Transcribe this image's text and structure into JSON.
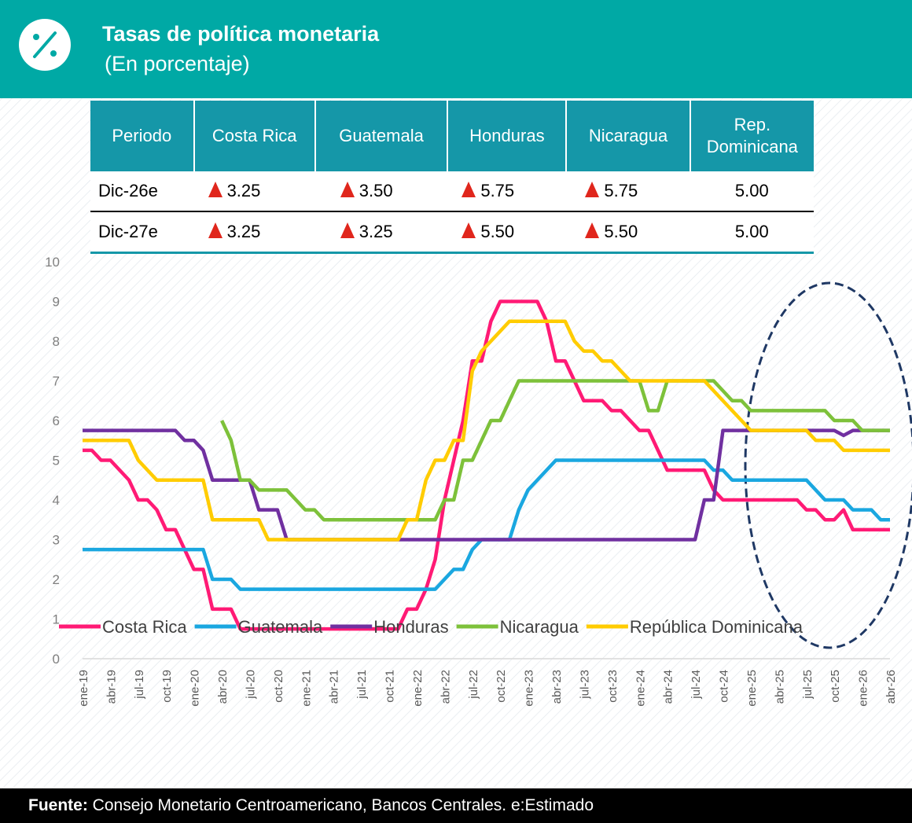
{
  "header": {
    "title": "Tasas de política monetaria",
    "subtitle": "(En porcentaje)"
  },
  "table": {
    "header": [
      "Periodo",
      "Costa Rica",
      "Guatemala",
      "Honduras",
      "Nicaragua",
      "Rep. Dominicana"
    ],
    "rows": [
      [
        "Dic-26e",
        "3.25",
        "3.50",
        "5.75",
        "5.75",
        "5.00"
      ],
      [
        "Dic-27e",
        "3.25",
        "3.25",
        "5.50",
        "5.50",
        "5.00"
      ]
    ]
  },
  "chart_data": {
    "type": "line",
    "categories": [
      "ene-19",
      null,
      null,
      "abr-19",
      null,
      null,
      "jul-19",
      null,
      null,
      "oct-19",
      null,
      null,
      "ene-20",
      null,
      null,
      "abr-20",
      null,
      null,
      "jul-20",
      null,
      null,
      "oct-20",
      null,
      null,
      "ene-21",
      null,
      null,
      "abr-21",
      null,
      null,
      "jul-21",
      null,
      null,
      "oct-21",
      null,
      null,
      "ene-22",
      null,
      null,
      "abr-22",
      null,
      null,
      "jul-22",
      null,
      null,
      "oct-22",
      null,
      null,
      "ene-23",
      null,
      null,
      "abr-23",
      null,
      null,
      "jul-23",
      null,
      null,
      "oct-23",
      null,
      null,
      "ene-24",
      null,
      null,
      "abr-24",
      null,
      null,
      "jul-24",
      null,
      null,
      "oct-24",
      null,
      null,
      "ene-25",
      null,
      null,
      "abr-25",
      null,
      null,
      "jul-25",
      null,
      null,
      "oct-25",
      null,
      null,
      "ene-26",
      null,
      null,
      "abr-26"
    ],
    "ylim": [
      0,
      10
    ],
    "yticks": [
      0,
      1,
      2,
      3,
      4,
      5,
      6,
      7,
      8,
      9,
      10
    ],
    "grid": false,
    "legend": "bottom",
    "series": [
      {
        "name": "Costa Rica",
        "color": "#ff1a75",
        "values": [
          5.25,
          5.25,
          5.0,
          5.0,
          4.75,
          4.5,
          4.0,
          4.0,
          3.75,
          3.25,
          3.25,
          2.75,
          2.25,
          2.25,
          1.25,
          1.25,
          1.25,
          0.75,
          0.75,
          0.75,
          0.75,
          0.75,
          0.75,
          0.75,
          0.75,
          0.75,
          0.75,
          0.75,
          0.75,
          0.75,
          0.75,
          0.75,
          0.75,
          0.75,
          0.75,
          1.25,
          1.25,
          1.75,
          2.5,
          4.0,
          5.0,
          6.0,
          7.5,
          7.5,
          8.5,
          9.0,
          9.0,
          9.0,
          9.0,
          9.0,
          8.5,
          7.5,
          7.5,
          7.0,
          6.5,
          6.5,
          6.5,
          6.25,
          6.25,
          6.0,
          5.75,
          5.75,
          5.25,
          4.75,
          4.75,
          4.75,
          4.75,
          4.75,
          4.25,
          4.0,
          4.0,
          4.0,
          4.0,
          4.0,
          4.0,
          4.0,
          4.0,
          4.0,
          3.75,
          3.75,
          3.5,
          3.5,
          3.75,
          3.25,
          3.25,
          3.25,
          3.25,
          3.25
        ]
      },
      {
        "name": "Guatemala",
        "color": "#1aa7e0",
        "values": [
          2.75,
          2.75,
          2.75,
          2.75,
          2.75,
          2.75,
          2.75,
          2.75,
          2.75,
          2.75,
          2.75,
          2.75,
          2.75,
          2.75,
          2.0,
          2.0,
          2.0,
          1.75,
          1.75,
          1.75,
          1.75,
          1.75,
          1.75,
          1.75,
          1.75,
          1.75,
          1.75,
          1.75,
          1.75,
          1.75,
          1.75,
          1.75,
          1.75,
          1.75,
          1.75,
          1.75,
          1.75,
          1.75,
          1.75,
          2.0,
          2.25,
          2.25,
          2.75,
          3.0,
          3.0,
          3.0,
          3.0,
          3.75,
          4.25,
          4.5,
          4.75,
          5.0,
          5.0,
          5.0,
          5.0,
          5.0,
          5.0,
          5.0,
          5.0,
          5.0,
          5.0,
          5.0,
          5.0,
          5.0,
          5.0,
          5.0,
          5.0,
          5.0,
          4.75,
          4.75,
          4.5,
          4.5,
          4.5,
          4.5,
          4.5,
          4.5,
          4.5,
          4.5,
          4.5,
          4.25,
          4.0,
          4.0,
          4.0,
          3.75,
          3.75,
          3.75,
          3.5,
          3.5
        ]
      },
      {
        "name": "Honduras",
        "color": "#7030a0",
        "values": [
          5.75,
          5.75,
          5.75,
          5.75,
          5.75,
          5.75,
          5.75,
          5.75,
          5.75,
          5.75,
          5.75,
          5.5,
          5.5,
          5.25,
          4.5,
          4.5,
          4.5,
          4.5,
          4.5,
          3.75,
          3.75,
          3.75,
          3.0,
          3.0,
          3.0,
          3.0,
          3.0,
          3.0,
          3.0,
          3.0,
          3.0,
          3.0,
          3.0,
          3.0,
          3.0,
          3.0,
          3.0,
          3.0,
          3.0,
          3.0,
          3.0,
          3.0,
          3.0,
          3.0,
          3.0,
          3.0,
          3.0,
          3.0,
          3.0,
          3.0,
          3.0,
          3.0,
          3.0,
          3.0,
          3.0,
          3.0,
          3.0,
          3.0,
          3.0,
          3.0,
          3.0,
          3.0,
          3.0,
          3.0,
          3.0,
          3.0,
          3.0,
          4.0,
          4.0,
          5.75,
          5.75,
          5.75,
          5.75,
          5.75,
          5.75,
          5.75,
          5.75,
          5.75,
          5.75,
          5.75,
          5.75,
          5.75,
          5.625,
          5.75,
          5.75,
          5.75,
          5.75,
          5.75
        ]
      },
      {
        "name": "Nicaragua",
        "color": "#7dc13a",
        "values": [
          null,
          null,
          null,
          null,
          null,
          null,
          null,
          null,
          null,
          null,
          null,
          null,
          null,
          null,
          null,
          6.0,
          5.5,
          4.5,
          4.5,
          4.25,
          4.25,
          4.25,
          4.25,
          4.0,
          3.75,
          3.75,
          3.5,
          3.5,
          3.5,
          3.5,
          3.5,
          3.5,
          3.5,
          3.5,
          3.5,
          3.5,
          3.5,
          3.5,
          3.5,
          4.0,
          4.0,
          5.0,
          5.0,
          5.5,
          6.0,
          6.0,
          6.5,
          7.0,
          7.0,
          7.0,
          7.0,
          7.0,
          7.0,
          7.0,
          7.0,
          7.0,
          7.0,
          7.0,
          7.0,
          7.0,
          7.0,
          6.25,
          6.25,
          7.0,
          7.0,
          7.0,
          7.0,
          7.0,
          7.0,
          6.75,
          6.5,
          6.5,
          6.25,
          6.25,
          6.25,
          6.25,
          6.25,
          6.25,
          6.25,
          6.25,
          6.25,
          6.0,
          6.0,
          6.0,
          5.75,
          5.75,
          5.75,
          5.75
        ]
      },
      {
        "name": "República Dominicana",
        "color": "#ffcc00",
        "values": [
          5.5,
          5.5,
          5.5,
          5.5,
          5.5,
          5.5,
          5.0,
          4.75,
          4.5,
          4.5,
          4.5,
          4.5,
          4.5,
          4.5,
          3.5,
          3.5,
          3.5,
          3.5,
          3.5,
          3.5,
          3.0,
          3.0,
          3.0,
          3.0,
          3.0,
          3.0,
          3.0,
          3.0,
          3.0,
          3.0,
          3.0,
          3.0,
          3.0,
          3.0,
          3.0,
          3.5,
          3.5,
          4.5,
          5.0,
          5.0,
          5.5,
          5.5,
          7.25,
          7.75,
          8.0,
          8.25,
          8.5,
          8.5,
          8.5,
          8.5,
          8.5,
          8.5,
          8.5,
          8.0,
          7.75,
          7.75,
          7.5,
          7.5,
          7.25,
          7.0,
          7.0,
          7.0,
          7.0,
          7.0,
          7.0,
          7.0,
          7.0,
          7.0,
          6.75,
          6.5,
          6.25,
          6.0,
          5.75,
          5.75,
          5.75,
          5.75,
          5.75,
          5.75,
          5.75,
          5.5,
          5.5,
          5.5,
          5.25,
          5.25,
          5.25,
          5.25,
          5.25,
          5.25
        ]
      }
    ]
  },
  "footer": {
    "label": "Fuente:",
    "text": "Consejo Monetario Centroamericano, Bancos Centrales. e:Estimado"
  }
}
